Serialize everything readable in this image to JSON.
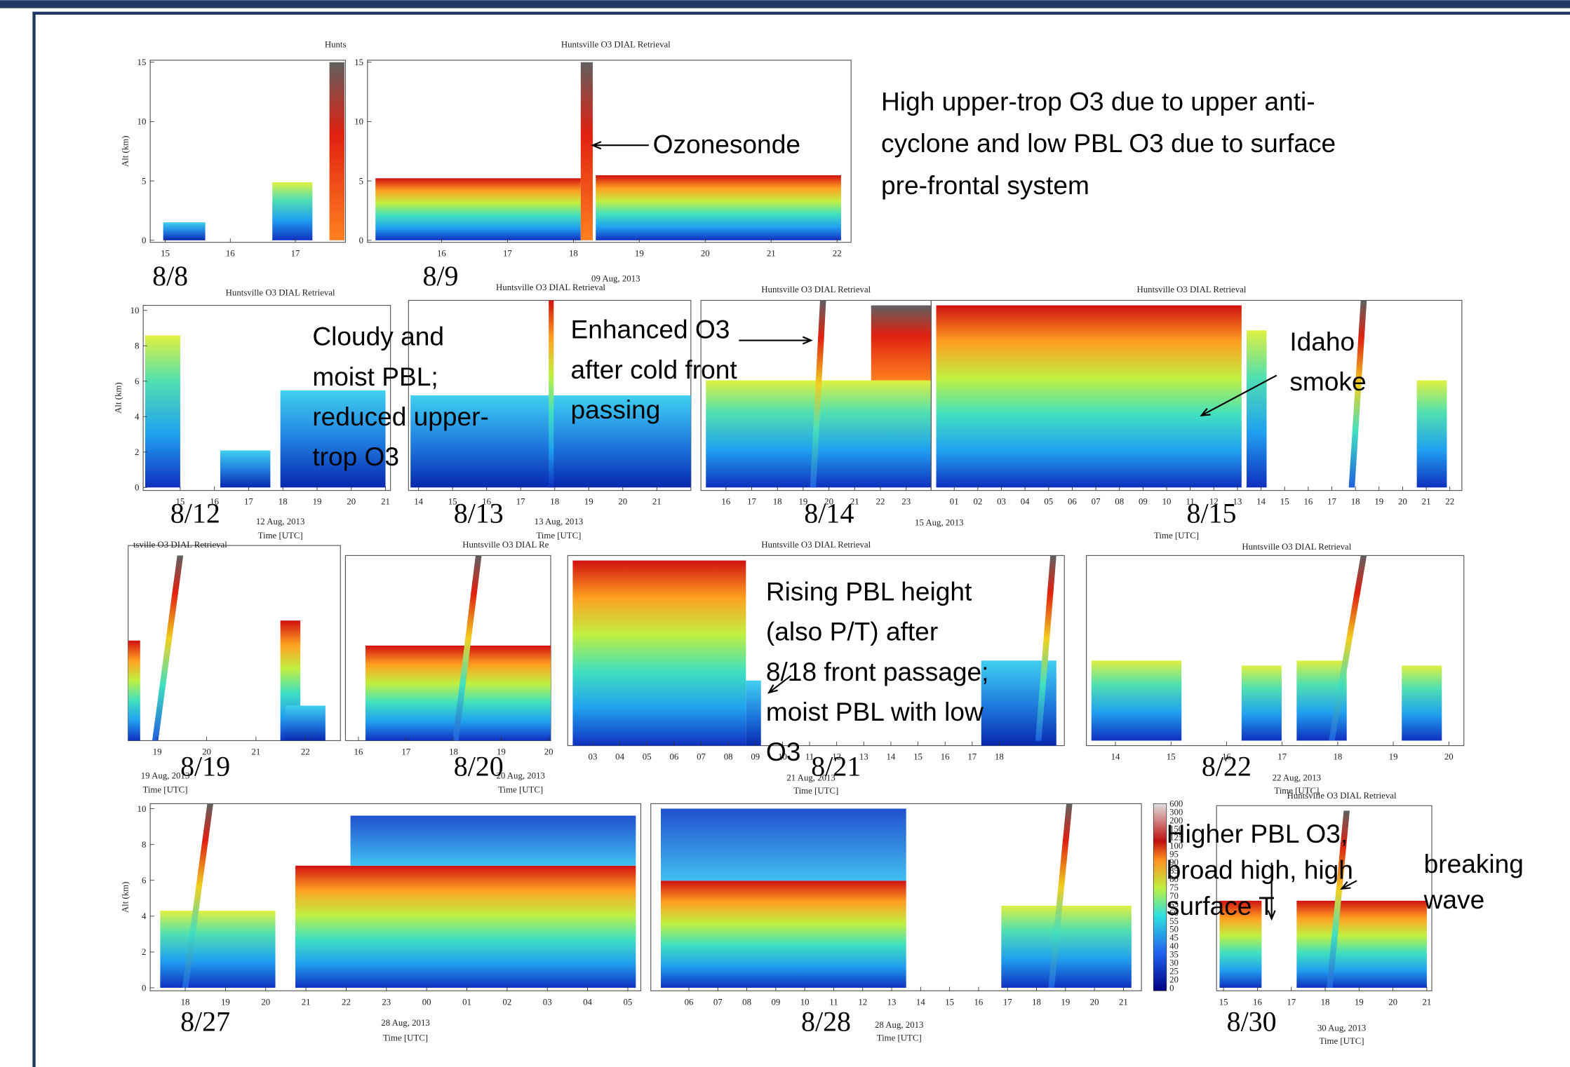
{
  "panels": [
    {
      "date": "8/8",
      "title": "Hunts",
      "y_label": "Alt (km)",
      "y_ticks": [
        "0",
        "5",
        "10",
        "15"
      ],
      "x_ticks": [
        "15",
        "16",
        "17"
      ]
    },
    {
      "date": "8/9",
      "title": "Huntsville O3 DIAL Retrieval",
      "y_ticks": [
        "0",
        "5",
        "10",
        "15"
      ],
      "x_ticks": [
        "16",
        "17",
        "18",
        "19",
        "20",
        "21",
        "22"
      ],
      "date_caption": "09 Aug, 2013"
    },
    {
      "date": "8/12",
      "title": "Huntsville O3 DIAL Retrieval",
      "y_label": "Alt (km)",
      "y_ticks": [
        "0",
        "2",
        "4",
        "6",
        "8",
        "10"
      ],
      "x_ticks": [
        "15",
        "16",
        "17",
        "18",
        "19",
        "20",
        "21"
      ],
      "date_caption": "12 Aug, 2013",
      "x_label": "Time [UTC]"
    },
    {
      "date": "8/13",
      "title": "Huntsville O3 DIAL Retrieval",
      "x_ticks": [
        "14",
        "15",
        "16",
        "17",
        "18",
        "19",
        "20",
        "21"
      ],
      "date_caption": "13 Aug, 2013",
      "x_label": "Time [UTC]"
    },
    {
      "date": "8/14",
      "title": "Huntsville O3 DIAL Retrieval",
      "x_ticks": [
        "16",
        "17",
        "18",
        "19",
        "20",
        "21",
        "22",
        "23"
      ]
    },
    {
      "date": "8/15",
      "title": "Huntsville O3 DIAL Retrieval",
      "x_ticks": [
        "01",
        "02",
        "03",
        "04",
        "05",
        "06",
        "07",
        "08",
        "09",
        "10",
        "11",
        "12",
        "13",
        "14",
        "15",
        "16",
        "17",
        "18",
        "19",
        "20",
        "21",
        "22"
      ],
      "date_caption": "15 Aug, 2013",
      "x_label": "Time [UTC]"
    },
    {
      "date": "8/19",
      "title": "tsville O3 DIAL Retrieval",
      "x_ticks": [
        "19",
        "20",
        "21",
        "22"
      ],
      "date_caption": "19 Aug, 2013",
      "x_label": "Time [UTC]"
    },
    {
      "date": "8/20",
      "title": "Huntsville O3 DIAL Re",
      "x_ticks": [
        "16",
        "17",
        "18",
        "19",
        "20"
      ],
      "date_caption": "20 Aug, 2013",
      "x_label": "Time [UTC]"
    },
    {
      "date": "8/21",
      "title": "Huntsville O3 DIAL Retrieval",
      "x_ticks": [
        "03",
        "04",
        "05",
        "06",
        "07",
        "08",
        "09",
        "10",
        "11",
        "12",
        "13",
        "14",
        "15",
        "16",
        "17",
        "18"
      ],
      "date_caption": "21 Aug, 2013",
      "x_label": "Time [UTC]"
    },
    {
      "date": "8/22",
      "title": "Huntsville O3 DIAL Retrieval",
      "x_ticks": [
        "14",
        "15",
        "16",
        "17",
        "18",
        "19",
        "20"
      ],
      "date_caption": "22 Aug, 2013",
      "x_label": "Time [UTC]"
    },
    {
      "date": "8/27",
      "y_label": "Alt (km)",
      "y_ticks": [
        "0",
        "2",
        "4",
        "6",
        "8",
        "10"
      ],
      "x_ticks": [
        "18",
        "19",
        "20",
        "21",
        "22",
        "23",
        "00",
        "01",
        "02",
        "03",
        "04",
        "05"
      ],
      "date_caption": "28 Aug, 2013",
      "x_label": "Time [UTC]"
    },
    {
      "date": "8/28",
      "x_ticks": [
        "06",
        "07",
        "08",
        "09",
        "10",
        "11",
        "12",
        "13",
        "14",
        "15",
        "16",
        "17",
        "18",
        "19",
        "20",
        "21"
      ],
      "date_caption": "28 Aug, 2013",
      "x_label": "Time [UTC]"
    },
    {
      "date": "8/30",
      "title": "Huntsville O3 DIAL Retrieval",
      "x_ticks": [
        "15",
        "16",
        "17",
        "18",
        "19",
        "20",
        "21"
      ],
      "date_caption": "30 Aug, 2013",
      "x_label": "Time [UTC]"
    }
  ],
  "colorbar": {
    "labels": [
      "600",
      "300",
      "200",
      "150",
      "125",
      "100",
      "95",
      "90",
      "85",
      "80",
      "75",
      "70",
      "65",
      "60",
      "55",
      "50",
      "45",
      "40",
      "35",
      "30",
      "25",
      "20",
      "0"
    ]
  },
  "annotations": [
    {
      "lines": [
        "High upper-trop O3 due to upper anti-",
        "cyclone and low PBL O3 due to surface",
        "pre-frontal system"
      ]
    },
    {
      "lines": [
        "Ozonesonde"
      ]
    },
    {
      "lines": [
        "Cloudy and",
        "moist PBL;",
        "reduced upper-",
        "trop O3"
      ]
    },
    {
      "lines": [
        "Enhanced O3",
        "after cold front",
        "passing"
      ]
    },
    {
      "lines": [
        "Idaho",
        "smoke"
      ]
    },
    {
      "lines": [
        "Rising PBL height",
        "(also P/T) after",
        "8/18 front passage;",
        "moist PBL with low",
        "O3"
      ]
    },
    {
      "lines": [
        "Higher PBL O3,",
        "broad high, high",
        "surface T"
      ]
    },
    {
      "lines": [
        "breaking",
        "wave"
      ]
    }
  ]
}
